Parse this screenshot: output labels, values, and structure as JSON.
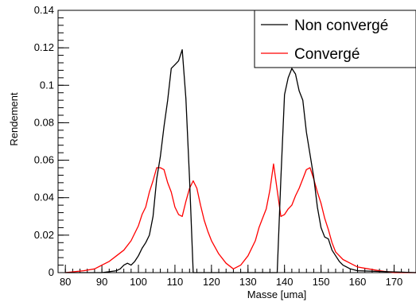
{
  "chart_data": {
    "type": "line",
    "title": "",
    "xlabel": "Masse [uma]",
    "ylabel": "Rendement",
    "xlim": [
      78,
      176
    ],
    "ylim": [
      0,
      0.14
    ],
    "x_ticks": [
      80,
      90,
      100,
      110,
      120,
      130,
      140,
      150,
      160,
      170
    ],
    "y_ticks": [
      0,
      0.02,
      0.04,
      0.06,
      0.08,
      0.1,
      0.12,
      0.14
    ],
    "x_tick_labels": [
      "80",
      "90",
      "100",
      "110",
      "120",
      "130",
      "140",
      "150",
      "160",
      "170"
    ],
    "y_tick_labels": [
      "0",
      "0.02",
      "0.04",
      "0.06",
      "0.08",
      "0.1",
      "0.12",
      "0.14"
    ],
    "grid": false,
    "legend_position": "top-right",
    "series": [
      {
        "name": "Non convergé",
        "color": "#000000",
        "x": [
          80,
          90,
          94,
          95,
          96,
          97,
          98,
          99,
          100,
          101,
          102,
          103,
          104,
          105,
          106,
          107,
          108,
          109,
          110,
          111,
          112,
          113,
          114,
          115,
          116,
          120,
          125,
          130,
          135,
          136,
          137,
          138,
          139,
          140,
          141,
          142,
          143,
          144,
          145,
          146,
          147,
          148,
          149,
          150,
          151,
          152,
          153,
          154,
          155,
          156,
          157,
          158,
          160,
          176
        ],
        "y": [
          0,
          0,
          0.001,
          0.002,
          0.004,
          0.005,
          0.004,
          0.006,
          0.009,
          0.013,
          0.016,
          0.02,
          0.03,
          0.05,
          0.062,
          0.078,
          0.092,
          0.109,
          0.111,
          0.113,
          0.119,
          0.093,
          0.05,
          0.0,
          0.0,
          0.0,
          0.0,
          0.0,
          0.0,
          0.0,
          0.0,
          0.0,
          0.05,
          0.095,
          0.104,
          0.109,
          0.106,
          0.097,
          0.092,
          0.075,
          0.063,
          0.051,
          0.035,
          0.024,
          0.019,
          0.018,
          0.012,
          0.009,
          0.006,
          0.004,
          0.003,
          0.002,
          0.001,
          0.0
        ]
      },
      {
        "name": "Convergé",
        "color": "#ff0000",
        "x": [
          80,
          85,
          88,
          90,
          92,
          94,
          96,
          98,
          100,
          101,
          102,
          103,
          104,
          105,
          106,
          107,
          108,
          109,
          110,
          111,
          112,
          113,
          114,
          115,
          116,
          117,
          118,
          119,
          120,
          122,
          124,
          126,
          128,
          130,
          132,
          133,
          134,
          135,
          136,
          137,
          138,
          139,
          140,
          141,
          142,
          143,
          144,
          145,
          146,
          147,
          148,
          149,
          150,
          151,
          152,
          153,
          154,
          156,
          158,
          160,
          163,
          166,
          170,
          176
        ],
        "y": [
          0,
          0.001,
          0.002,
          0.004,
          0.006,
          0.009,
          0.012,
          0.017,
          0.025,
          0.031,
          0.035,
          0.043,
          0.049,
          0.056,
          0.056,
          0.055,
          0.048,
          0.043,
          0.035,
          0.031,
          0.03,
          0.038,
          0.045,
          0.049,
          0.045,
          0.036,
          0.028,
          0.022,
          0.017,
          0.01,
          0.005,
          0.002,
          0.004,
          0.009,
          0.017,
          0.024,
          0.029,
          0.034,
          0.044,
          0.058,
          0.044,
          0.03,
          0.031,
          0.034,
          0.036,
          0.041,
          0.045,
          0.05,
          0.055,
          0.056,
          0.05,
          0.043,
          0.037,
          0.029,
          0.023,
          0.016,
          0.011,
          0.007,
          0.005,
          0.003,
          0.002,
          0.001,
          0.0,
          0.0
        ]
      }
    ]
  }
}
